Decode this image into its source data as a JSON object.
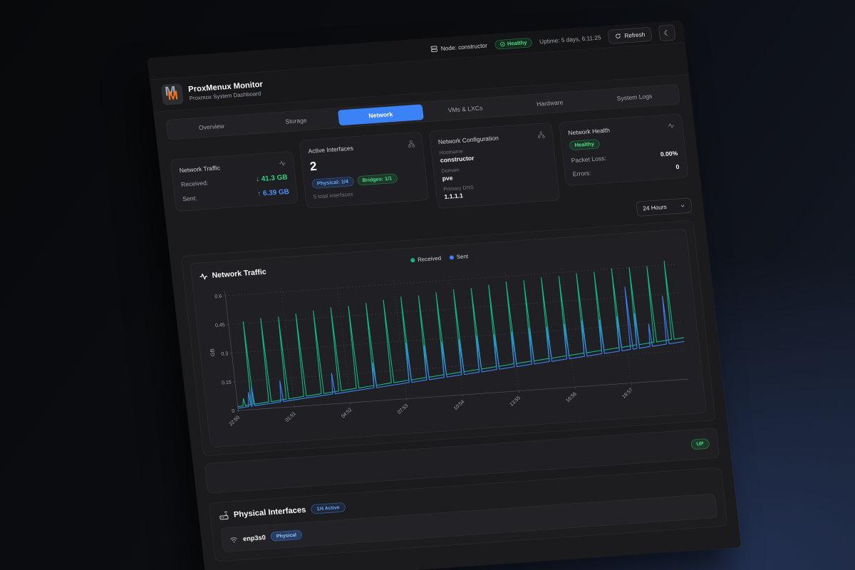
{
  "colors": {
    "accent_blue": "#3b82f6",
    "accent_green": "#10b981",
    "logo_orange": "#f97316"
  },
  "topbar": {
    "node_label": "Node: constructor",
    "health": "Healthy",
    "uptime": "Uptime: 5 days, 6:11:25",
    "refresh_label": "Refresh",
    "moon_glyph": "☾"
  },
  "header": {
    "logo_letter": "M",
    "title": "ProxMenux Monitor",
    "subtitle": "Proxmox System Dashboard"
  },
  "tabs": [
    {
      "label": "Overview",
      "active": false
    },
    {
      "label": "Storage",
      "active": false
    },
    {
      "label": "Network",
      "active": true
    },
    {
      "label": "VMs & LXCs",
      "active": false
    },
    {
      "label": "Hardware",
      "active": false
    },
    {
      "label": "System Logs",
      "active": false
    }
  ],
  "cards": {
    "traffic": {
      "title": "Network Traffic",
      "received_label": "Received:",
      "received_value": "↓ 41.3 GB",
      "sent_label": "Sent:",
      "sent_value": "↑ 6.39 GB"
    },
    "interfaces": {
      "title": "Active Interfaces",
      "count": "2",
      "physical_badge": "Physical: 1/4",
      "bridges_badge": "Bridges: 1/1",
      "total": "5 total interfaces"
    },
    "config": {
      "title": "Network Configuration",
      "hostname_label": "Hostname",
      "hostname": "constructor",
      "domain_label": "Domain",
      "domain": "pve",
      "dns_label": "Primary DNS",
      "dns": "1.1.1.1"
    },
    "health": {
      "title": "Network Health",
      "status": "Healthy",
      "packet_loss_label": "Packet Loss:",
      "packet_loss": "0.00%",
      "errors_label": "Errors:",
      "errors": "0"
    }
  },
  "controls": {
    "range_value": "24 Hours"
  },
  "chart_data": {
    "type": "line",
    "title": "Network Traffic",
    "ylabel": "GB",
    "ylim": [
      0,
      0.62
    ],
    "y_ticks": [
      0,
      0.15,
      0.3,
      0.45,
      0.6
    ],
    "x_ticks": [
      {
        "t": 0.0,
        "label": "22:50"
      },
      {
        "t": 3.02,
        "label": "01:51"
      },
      {
        "t": 6.03,
        "label": "04:52"
      },
      {
        "t": 9.05,
        "label": "07:53"
      },
      {
        "t": 12.07,
        "label": "10:54"
      },
      {
        "t": 15.08,
        "label": "13:55"
      },
      {
        "t": 18.1,
        "label": "16:56"
      },
      {
        "t": 21.12,
        "label": "19:57"
      }
    ],
    "x_domain_hours": [
      0,
      24.2
    ],
    "grid": "dashed",
    "legend_position": "top-center",
    "series": [
      {
        "name": "Received",
        "color": "#10b981",
        "baseline_start_gb": 0.02,
        "baseline_end_gb": 0.215,
        "spikes": [
          [
            0.35,
            0.06
          ],
          [
            0.8,
            0.46
          ],
          [
            1.75,
            0.47
          ],
          [
            2.7,
            0.47
          ],
          [
            3.65,
            0.48
          ],
          [
            4.6,
            0.49
          ],
          [
            5.55,
            0.5
          ],
          [
            6.5,
            0.5
          ],
          [
            7.45,
            0.51
          ],
          [
            8.4,
            0.52
          ],
          [
            9.35,
            0.53
          ],
          [
            10.3,
            0.53
          ],
          [
            11.25,
            0.54
          ],
          [
            12.2,
            0.55
          ],
          [
            13.15,
            0.55
          ],
          [
            14.1,
            0.56
          ],
          [
            15.05,
            0.57
          ],
          [
            16.0,
            0.57
          ],
          [
            16.95,
            0.58
          ],
          [
            17.9,
            0.58
          ],
          [
            18.85,
            0.59
          ],
          [
            19.8,
            0.59
          ],
          [
            20.75,
            0.6
          ],
          [
            21.7,
            0.6
          ],
          [
            22.65,
            0.6
          ],
          [
            23.6,
            0.62
          ]
        ]
      },
      {
        "name": "Sent",
        "color": "#3b82f6",
        "baseline_start_gb": 0.012,
        "baseline_end_gb": 0.195,
        "spikes": [
          [
            0.65,
            0.09
          ],
          [
            0.85,
            0.12
          ],
          [
            2.4,
            0.14
          ],
          [
            5.2,
            0.16
          ],
          [
            7.45,
            0.2
          ],
          [
            9.35,
            0.29
          ],
          [
            10.3,
            0.27
          ],
          [
            11.25,
            0.28
          ],
          [
            12.2,
            0.29
          ],
          [
            13.15,
            0.3
          ],
          [
            14.1,
            0.3
          ],
          [
            15.05,
            0.31
          ],
          [
            16.0,
            0.32
          ],
          [
            16.95,
            0.32
          ],
          [
            17.9,
            0.33
          ],
          [
            18.85,
            0.34
          ],
          [
            19.8,
            0.34
          ],
          [
            20.75,
            0.35
          ],
          [
            21.35,
            0.5
          ],
          [
            21.7,
            0.36
          ],
          [
            22.4,
            0.3
          ],
          [
            23.3,
            0.44
          ]
        ]
      }
    ]
  },
  "bridge_row": {
    "status": "UP"
  },
  "physical_section": {
    "title": "Physical Interfaces",
    "active_badge": "1/4 Active",
    "rows": [
      {
        "name": "enp3s0",
        "badge": "Physical"
      }
    ]
  }
}
